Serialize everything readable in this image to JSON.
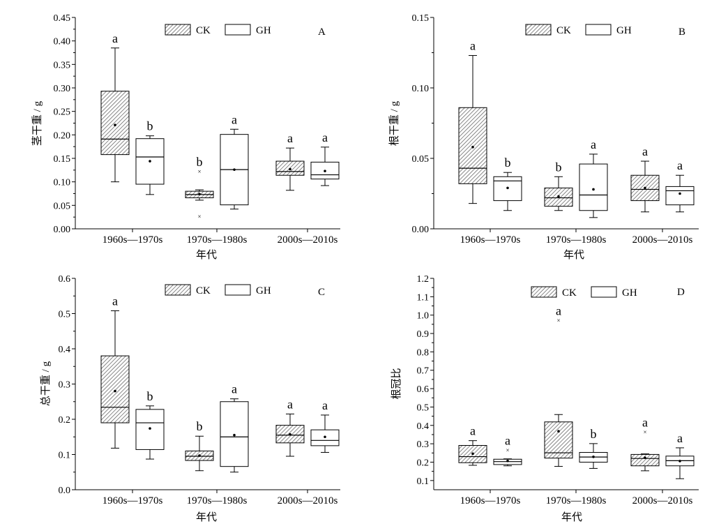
{
  "colors": {
    "axis": "#000000",
    "ck_hatch": "#555555",
    "gh_fill": "#ffffff"
  },
  "legend": {
    "ck": "CK",
    "gh": "GH"
  },
  "chart_data": [
    {
      "type": "box",
      "panel": "A",
      "ylabel": "茎干重 / g",
      "xlabel": "年代",
      "ylim": [
        0,
        0.45
      ],
      "yticks": [
        "0.00",
        "0.05",
        "0.10",
        "0.15",
        "0.20",
        "0.25",
        "0.30",
        "0.35",
        "0.40",
        "0.45"
      ],
      "categories": [
        "1960s—1970s",
        "1970s—1980s",
        "2000s—2010s"
      ],
      "series": [
        {
          "name": "CK",
          "boxes": [
            {
              "min": 0.1,
              "q1": 0.158,
              "median": 0.191,
              "q3": 0.293,
              "max": 0.385,
              "mean": 0.221,
              "label": "a",
              "outliers": []
            },
            {
              "min": 0.061,
              "q1": 0.066,
              "median": 0.073,
              "q3": 0.08,
              "max": 0.083,
              "mean": 0.074,
              "label": "b",
              "outliers": [
                0.122,
                0.026
              ]
            },
            {
              "min": 0.082,
              "q1": 0.114,
              "median": 0.122,
              "q3": 0.144,
              "max": 0.172,
              "mean": 0.127,
              "label": "a",
              "outliers": []
            }
          ]
        },
        {
          "name": "GH",
          "boxes": [
            {
              "min": 0.073,
              "q1": 0.095,
              "median": 0.153,
              "q3": 0.192,
              "max": 0.198,
              "mean": 0.144,
              "label": "b",
              "outliers": []
            },
            {
              "min": 0.042,
              "q1": 0.051,
              "median": 0.126,
              "q3": 0.201,
              "max": 0.212,
              "mean": 0.126,
              "label": "a",
              "outliers": []
            },
            {
              "min": 0.092,
              "q1": 0.106,
              "median": 0.115,
              "q3": 0.142,
              "max": 0.174,
              "mean": 0.123,
              "label": "a",
              "outliers": []
            }
          ]
        }
      ]
    },
    {
      "type": "box",
      "panel": "B",
      "ylabel": "根干重 / g",
      "xlabel": "年代",
      "ylim": [
        0,
        0.15
      ],
      "yticks": [
        "0.00",
        "0.05",
        "0.10",
        "0.15"
      ],
      "categories": [
        "1960s—1970s",
        "1970s—1980s",
        "2000s—2010s"
      ],
      "series": [
        {
          "name": "CK",
          "boxes": [
            {
              "min": 0.018,
              "q1": 0.032,
              "median": 0.043,
              "q3": 0.086,
              "max": 0.123,
              "mean": 0.058,
              "label": "a",
              "outliers": []
            },
            {
              "min": 0.013,
              "q1": 0.016,
              "median": 0.022,
              "q3": 0.029,
              "max": 0.037,
              "mean": 0.023,
              "label": "b",
              "outliers": []
            },
            {
              "min": 0.012,
              "q1": 0.02,
              "median": 0.028,
              "q3": 0.038,
              "max": 0.048,
              "mean": 0.029,
              "label": "a",
              "outliers": []
            }
          ]
        },
        {
          "name": "GH",
          "boxes": [
            {
              "min": 0.013,
              "q1": 0.02,
              "median": 0.034,
              "q3": 0.037,
              "max": 0.04,
              "mean": 0.029,
              "label": "b",
              "outliers": []
            },
            {
              "min": 0.008,
              "q1": 0.013,
              "median": 0.024,
              "q3": 0.046,
              "max": 0.053,
              "mean": 0.028,
              "label": "a",
              "outliers": []
            },
            {
              "min": 0.012,
              "q1": 0.017,
              "median": 0.027,
              "q3": 0.03,
              "max": 0.038,
              "mean": 0.025,
              "label": "a",
              "outliers": []
            }
          ]
        }
      ]
    },
    {
      "type": "box",
      "panel": "C",
      "ylabel": "总干重 / g",
      "xlabel": "年代",
      "ylim": [
        0,
        0.6
      ],
      "yticks": [
        "0.0",
        "0.1",
        "0.2",
        "0.3",
        "0.4",
        "0.5",
        "0.6"
      ],
      "categories": [
        "1960s—1970s",
        "1970s—1980s",
        "2000s—2010s"
      ],
      "series": [
        {
          "name": "CK",
          "boxes": [
            {
              "min": 0.118,
              "q1": 0.19,
              "median": 0.234,
              "q3": 0.38,
              "max": 0.508,
              "mean": 0.28,
              "label": "a",
              "outliers": []
            },
            {
              "min": 0.054,
              "q1": 0.083,
              "median": 0.095,
              "q3": 0.11,
              "max": 0.152,
              "mean": 0.097,
              "label": "b",
              "outliers": []
            },
            {
              "min": 0.095,
              "q1": 0.133,
              "median": 0.155,
              "q3": 0.183,
              "max": 0.215,
              "mean": 0.157,
              "label": "a",
              "outliers": []
            }
          ]
        },
        {
          "name": "GH",
          "boxes": [
            {
              "min": 0.087,
              "q1": 0.114,
              "median": 0.19,
              "q3": 0.228,
              "max": 0.238,
              "mean": 0.174,
              "label": "b",
              "outliers": []
            },
            {
              "min": 0.05,
              "q1": 0.066,
              "median": 0.15,
              "q3": 0.25,
              "max": 0.258,
              "mean": 0.155,
              "label": "a",
              "outliers": []
            },
            {
              "min": 0.106,
              "q1": 0.125,
              "median": 0.14,
              "q3": 0.17,
              "max": 0.212,
              "mean": 0.15,
              "label": "a",
              "outliers": []
            }
          ]
        }
      ]
    },
    {
      "type": "box",
      "panel": "D",
      "ylabel": "根冠比",
      "xlabel": "年代",
      "ylim": [
        0.05,
        1.2
      ],
      "yticks": [
        "0.1",
        "0.2",
        "0.3",
        "0.4",
        "0.5",
        "0.6",
        "0.7",
        "0.8",
        "0.9",
        "1.0",
        "1.1",
        "1.2"
      ],
      "categories": [
        "1960s—1970s",
        "1970s—1980s",
        "2000s—2010s"
      ],
      "series": [
        {
          "name": "CK",
          "boxes": [
            {
              "min": 0.183,
              "q1": 0.197,
              "median": 0.23,
              "q3": 0.291,
              "max": 0.317,
              "mean": 0.246,
              "label": "a",
              "outliers": []
            },
            {
              "min": 0.177,
              "q1": 0.222,
              "median": 0.251,
              "q3": 0.419,
              "max": 0.459,
              "mean": 0.368,
              "label": "a",
              "outliers": [
                0.97
              ]
            },
            {
              "min": 0.153,
              "q1": 0.18,
              "median": 0.22,
              "q3": 0.242,
              "max": 0.245,
              "mean": 0.224,
              "label": "a",
              "outliers": [
                0.363
              ]
            }
          ]
        },
        {
          "name": "GH",
          "boxes": [
            {
              "min": 0.18,
              "q1": 0.187,
              "median": 0.203,
              "q3": 0.216,
              "max": 0.218,
              "mean": 0.207,
              "label": "a",
              "outliers": [
                0.265
              ]
            },
            {
              "min": 0.166,
              "q1": 0.2,
              "median": 0.228,
              "q3": 0.253,
              "max": 0.301,
              "mean": 0.229,
              "label": "b",
              "outliers": []
            },
            {
              "min": 0.11,
              "q1": 0.18,
              "median": 0.208,
              "q3": 0.233,
              "max": 0.278,
              "mean": 0.206,
              "label": "a",
              "outliers": []
            }
          ]
        }
      ]
    }
  ]
}
